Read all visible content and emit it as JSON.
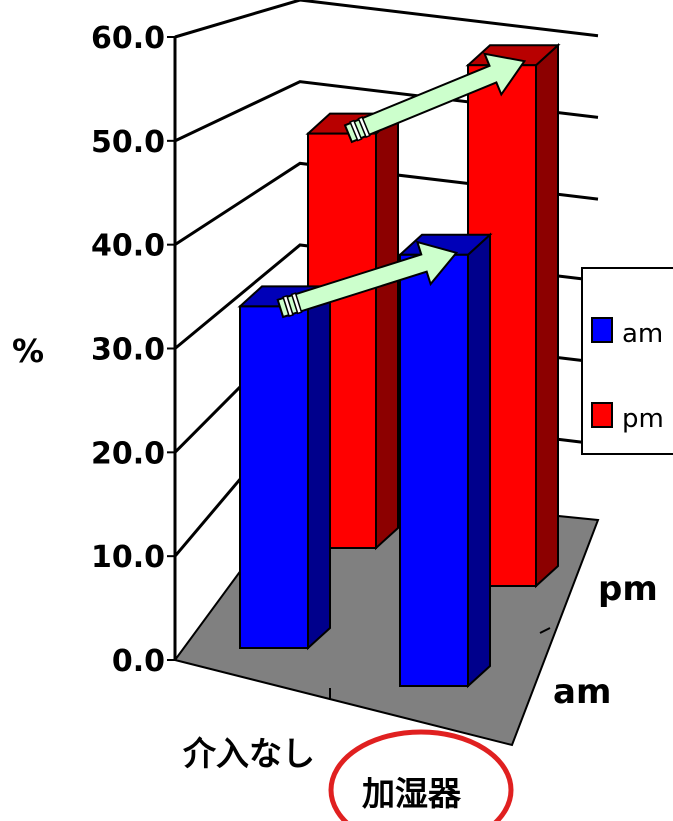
{
  "chart_data": {
    "type": "bar",
    "categories": [
      "介入なし",
      "加湿器"
    ],
    "series": [
      {
        "name": "am",
        "values": [
          30.5,
          38.5
        ],
        "color": "#0000ff"
      },
      {
        "name": "pm",
        "values": [
          37.0,
          46.5
        ],
        "color": "#ff0000"
      }
    ],
    "depth_labels": [
      "pm",
      "am"
    ],
    "ylabel": "%",
    "yticks": [
      "0.0",
      "10.0",
      "20.0",
      "30.0",
      "40.0",
      "50.0",
      "60.0"
    ],
    "ylim": [
      0,
      60
    ],
    "grid": true,
    "legend_position": "right",
    "floor_color": "#808080",
    "arrow_color": "#ccffcc",
    "highlight_category": "加湿器",
    "highlight_color": "#e02020"
  }
}
